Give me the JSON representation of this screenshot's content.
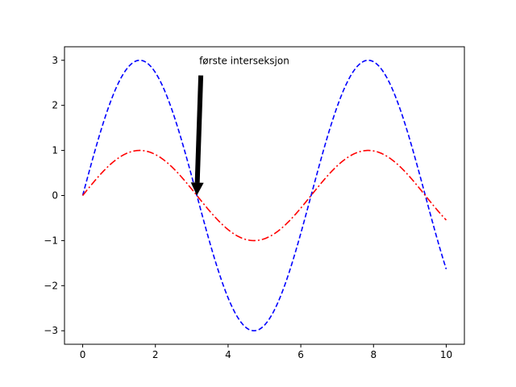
{
  "chart_data": {
    "type": "line",
    "title": "",
    "xlabel": "",
    "ylabel": "",
    "xlim": [
      -0.5,
      10.5
    ],
    "ylim": [
      -3.3,
      3.3
    ],
    "xticks": [
      0,
      2,
      4,
      6,
      8,
      10
    ],
    "xtick_labels": [
      "0",
      "2",
      "4",
      "6",
      "8",
      "10"
    ],
    "yticks": [
      -3,
      -2,
      -1,
      0,
      1,
      2,
      3
    ],
    "ytick_labels": [
      "−3",
      "−2",
      "−1",
      "0",
      "1",
      "2",
      "3"
    ],
    "grid": false,
    "legend": null,
    "series": [
      {
        "color": "#0000ff",
        "linestyle": "dashed",
        "x": [
          0,
          0.5,
          1,
          1.5,
          2,
          2.5,
          3,
          3.5,
          4,
          4.5,
          5,
          5.5,
          6,
          6.5,
          7,
          7.5,
          8,
          8.5,
          9,
          9.5,
          10
        ],
        "y": [
          0,
          1.44,
          2.52,
          2.99,
          2.73,
          1.8,
          0.42,
          -1.05,
          -2.27,
          -2.93,
          -2.88,
          -2.12,
          -0.84,
          0.65,
          1.97,
          2.81,
          2.97,
          2.4,
          1.24,
          -0.23,
          -1.63
        ]
      },
      {
        "color": "#ff0000",
        "linestyle": "dashdot",
        "x": [
          0,
          0.5,
          1,
          1.5,
          2,
          2.5,
          3,
          3.5,
          4,
          4.5,
          5,
          5.5,
          6,
          6.5,
          7,
          7.5,
          8,
          8.5,
          9,
          9.5,
          10
        ],
        "y": [
          0,
          0.48,
          0.84,
          1.0,
          0.91,
          0.6,
          0.14,
          -0.35,
          -0.76,
          -0.98,
          -0.96,
          -0.71,
          -0.28,
          0.22,
          0.66,
          0.94,
          0.99,
          0.8,
          0.41,
          -0.08,
          -0.54
        ]
      }
    ],
    "annotations": [
      {
        "text": "første interseksjon",
        "xy": [
          3.14,
          0.0
        ],
        "xytext": [
          3.25,
          2.7
        ],
        "arrow": "solid black"
      }
    ]
  }
}
